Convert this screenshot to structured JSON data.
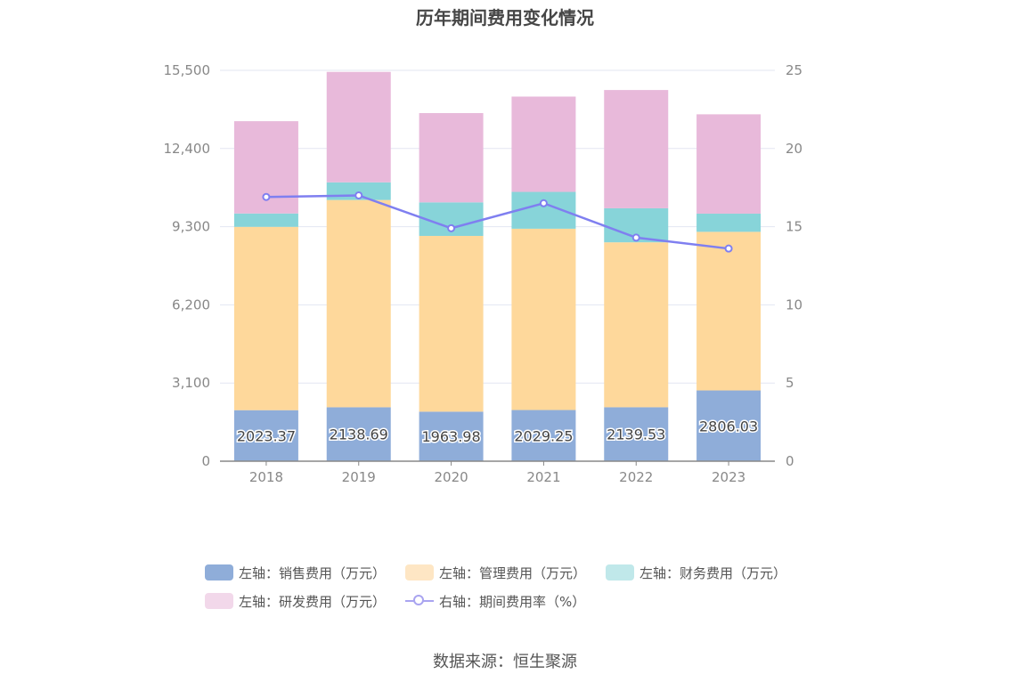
{
  "title": "历年期间费用变化情况",
  "source": "数据来源：恒生聚源",
  "legend": [
    {
      "label": "左轴：销售费用（万元）",
      "color": "#8fadd9"
    },
    {
      "label": "左轴：管理费用（万元）",
      "color": "#fed89b"
    },
    {
      "label": "左轴：财务费用（万元）",
      "color": "#87d4d9"
    },
    {
      "label": "左轴：研发费用（万元）",
      "color": "#e8b9da"
    },
    {
      "label": "右轴：期间费用率（%）",
      "color": "#7f7ff0"
    }
  ],
  "chart_data": {
    "type": "bar",
    "stacked": true,
    "categories": [
      "2018",
      "2019",
      "2020",
      "2021",
      "2022",
      "2023"
    ],
    "series": [
      {
        "name": "左轴：销售费用（万元）",
        "axis": "left",
        "color": "#8fadd9",
        "values": [
          2023.37,
          2138.69,
          1963.98,
          2029.25,
          2139.53,
          2806.03
        ]
      },
      {
        "name": "左轴：管理费用（万元）",
        "axis": "left",
        "color": "#fed89b",
        "values": [
          7270,
          8220,
          6970,
          7190,
          6540,
          6290
        ]
      },
      {
        "name": "左轴：财务费用（万元）",
        "axis": "left",
        "color": "#87d4d9",
        "values": [
          530,
          700,
          1330,
          1460,
          1350,
          720
        ]
      },
      {
        "name": "左轴：研发费用（万元）",
        "axis": "left",
        "color": "#e8b9da",
        "values": [
          3660,
          4380,
          3540,
          3780,
          4690,
          3940
        ]
      },
      {
        "name": "右轴：期间费用率（%）",
        "axis": "right",
        "type": "line",
        "color": "#7f7ff0",
        "values": [
          16.9,
          17.0,
          14.9,
          16.5,
          14.3,
          13.6
        ]
      }
    ],
    "data_labels": [
      "2023.37",
      "2138.69",
      "1963.98",
      "2029.25",
      "2139.53",
      "2806.03"
    ],
    "y_left": {
      "min": 0,
      "max": 15500,
      "ticks": [
        "0",
        "3,100",
        "6,200",
        "9,300",
        "12,400",
        "15,500"
      ]
    },
    "y_right": {
      "min": 0,
      "max": 25,
      "ticks": [
        "0",
        "5",
        "10",
        "15",
        "20",
        "25"
      ]
    },
    "grid": true
  }
}
